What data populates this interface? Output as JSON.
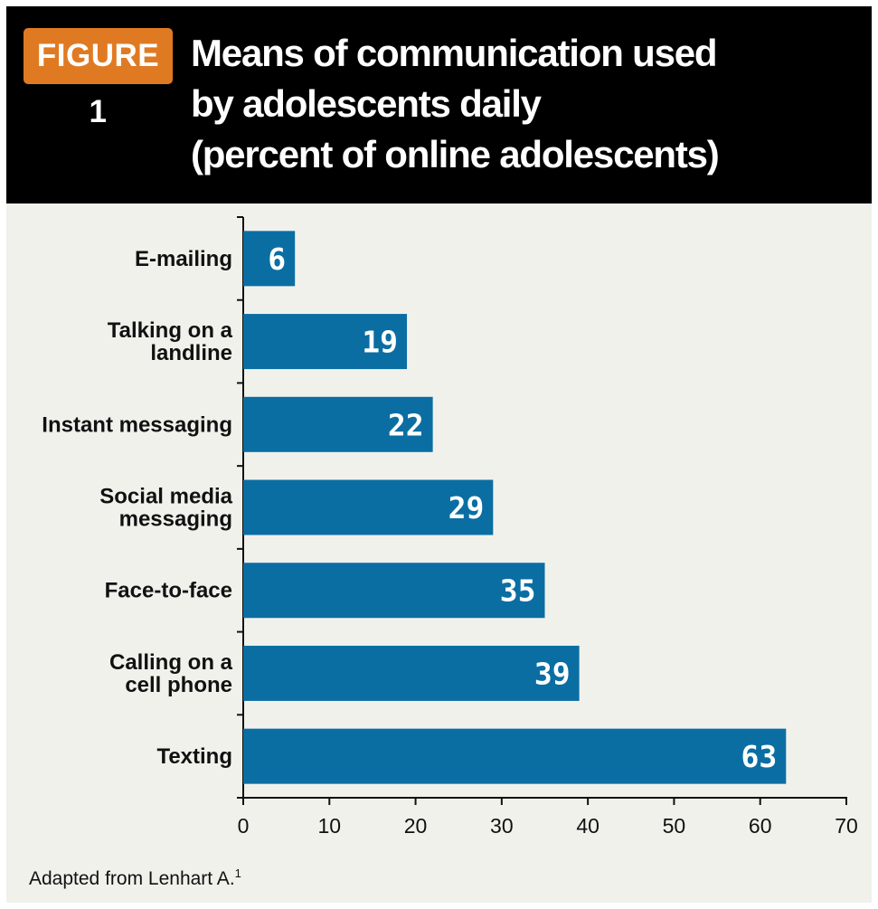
{
  "figure": {
    "badge": "FIGURE 1",
    "title_lines": [
      "Means of communication used",
      "by adolescents daily",
      "(percent of online adolescents)"
    ]
  },
  "chart_data": {
    "type": "bar",
    "orientation": "horizontal",
    "title": "Means of communication used by adolescents daily (percent of online adolescents)",
    "categories": [
      "E-mailing",
      "Talking on a landline",
      "Instant messaging",
      "Social media messaging",
      "Face-to-face",
      "Calling on a cell phone",
      "Texting"
    ],
    "category_lines": [
      [
        "E-mailing"
      ],
      [
        "Talking on a",
        "landline"
      ],
      [
        "Instant messaging"
      ],
      [
        "Social media",
        "messaging"
      ],
      [
        "Face-to-face"
      ],
      [
        "Calling on a",
        "cell phone"
      ],
      [
        "Texting"
      ]
    ],
    "values": [
      6,
      19,
      22,
      29,
      35,
      39,
      63
    ],
    "xlim": [
      0,
      70
    ],
    "xticks": [
      0,
      10,
      20,
      30,
      40,
      50,
      60,
      70
    ],
    "grid": false,
    "legend": "none",
    "bar_color": "#0a6ea3",
    "label_color": "#ffffff"
  },
  "source": {
    "text": "Adapted from Lenhart A.",
    "ref": "1"
  }
}
